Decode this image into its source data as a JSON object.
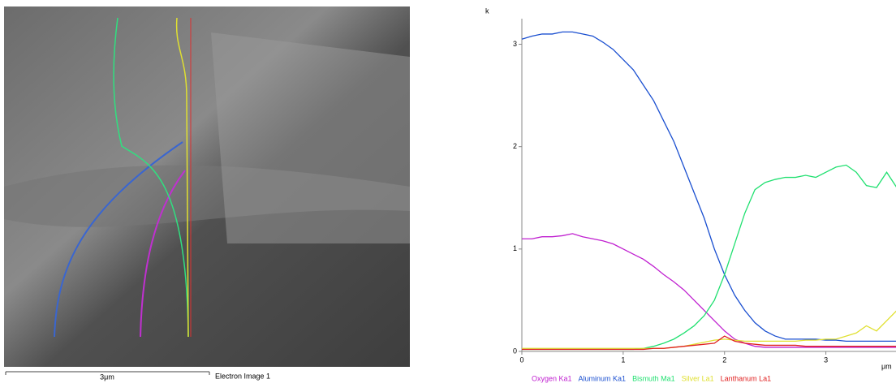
{
  "image": {
    "scale_bar": "3μm",
    "caption": "Electron Image 1"
  },
  "chart_data": {
    "type": "line",
    "y_label": "k",
    "x_label": "μm",
    "x": [
      0,
      0.1,
      0.2,
      0.3,
      0.4,
      0.5,
      0.6,
      0.7,
      0.8,
      0.9,
      1.0,
      1.1,
      1.2,
      1.3,
      1.4,
      1.5,
      1.6,
      1.7,
      1.8,
      1.9,
      2.0,
      2.1,
      2.2,
      2.3,
      2.4,
      2.5,
      2.6,
      2.7,
      2.8,
      2.9,
      3.0,
      3.1,
      3.2,
      3.3,
      3.4,
      3.5,
      3.6,
      3.7
    ],
    "xlim": [
      0,
      3.7
    ],
    "xticks": [
      0,
      1,
      2,
      3
    ],
    "ylim": [
      0,
      3.25
    ],
    "yticks": [
      0,
      1,
      2,
      3
    ],
    "series": [
      {
        "name": "Oxygen Ka1",
        "color": "#c020d0",
        "values": [
          1.1,
          1.1,
          1.12,
          1.12,
          1.13,
          1.15,
          1.12,
          1.1,
          1.08,
          1.05,
          1.0,
          0.95,
          0.9,
          0.83,
          0.75,
          0.68,
          0.6,
          0.5,
          0.4,
          0.3,
          0.2,
          0.12,
          0.08,
          0.05,
          0.04,
          0.04,
          0.04,
          0.04,
          0.04,
          0.04,
          0.04,
          0.04,
          0.04,
          0.04,
          0.04,
          0.04,
          0.04,
          0.04
        ]
      },
      {
        "name": "Aluminum Ka1",
        "color": "#1a4fd0",
        "values": [
          3.05,
          3.08,
          3.1,
          3.1,
          3.12,
          3.12,
          3.1,
          3.08,
          3.02,
          2.95,
          2.85,
          2.75,
          2.6,
          2.45,
          2.25,
          2.05,
          1.8,
          1.55,
          1.3,
          1.0,
          0.75,
          0.55,
          0.4,
          0.28,
          0.2,
          0.15,
          0.12,
          0.12,
          0.12,
          0.12,
          0.11,
          0.11,
          0.1,
          0.1,
          0.1,
          0.1,
          0.1,
          0.1
        ]
      },
      {
        "name": "Bismuth Ma1",
        "color": "#20e070",
        "values": [
          0.02,
          0.02,
          0.02,
          0.02,
          0.02,
          0.02,
          0.02,
          0.02,
          0.02,
          0.02,
          0.02,
          0.02,
          0.03,
          0.05,
          0.08,
          0.12,
          0.18,
          0.25,
          0.35,
          0.5,
          0.75,
          1.05,
          1.35,
          1.58,
          1.65,
          1.68,
          1.7,
          1.7,
          1.72,
          1.7,
          1.75,
          1.8,
          1.82,
          1.75,
          1.62,
          1.6,
          1.75,
          1.6
        ]
      },
      {
        "name": "Silver La1",
        "color": "#e0e030",
        "values": [
          0.03,
          0.03,
          0.03,
          0.03,
          0.03,
          0.03,
          0.03,
          0.03,
          0.03,
          0.03,
          0.03,
          0.03,
          0.03,
          0.03,
          0.03,
          0.04,
          0.05,
          0.07,
          0.09,
          0.11,
          0.12,
          0.11,
          0.1,
          0.1,
          0.1,
          0.1,
          0.1,
          0.1,
          0.11,
          0.11,
          0.12,
          0.12,
          0.15,
          0.18,
          0.25,
          0.2,
          0.3,
          0.4
        ]
      },
      {
        "name": "Lanthanum La1",
        "color": "#e02020",
        "values": [
          0.02,
          0.02,
          0.02,
          0.02,
          0.02,
          0.02,
          0.02,
          0.02,
          0.02,
          0.02,
          0.02,
          0.02,
          0.02,
          0.03,
          0.03,
          0.04,
          0.05,
          0.06,
          0.07,
          0.08,
          0.15,
          0.1,
          0.08,
          0.07,
          0.06,
          0.06,
          0.06,
          0.06,
          0.05,
          0.05,
          0.05,
          0.05,
          0.05,
          0.05,
          0.05,
          0.05,
          0.05,
          0.05
        ]
      }
    ]
  }
}
